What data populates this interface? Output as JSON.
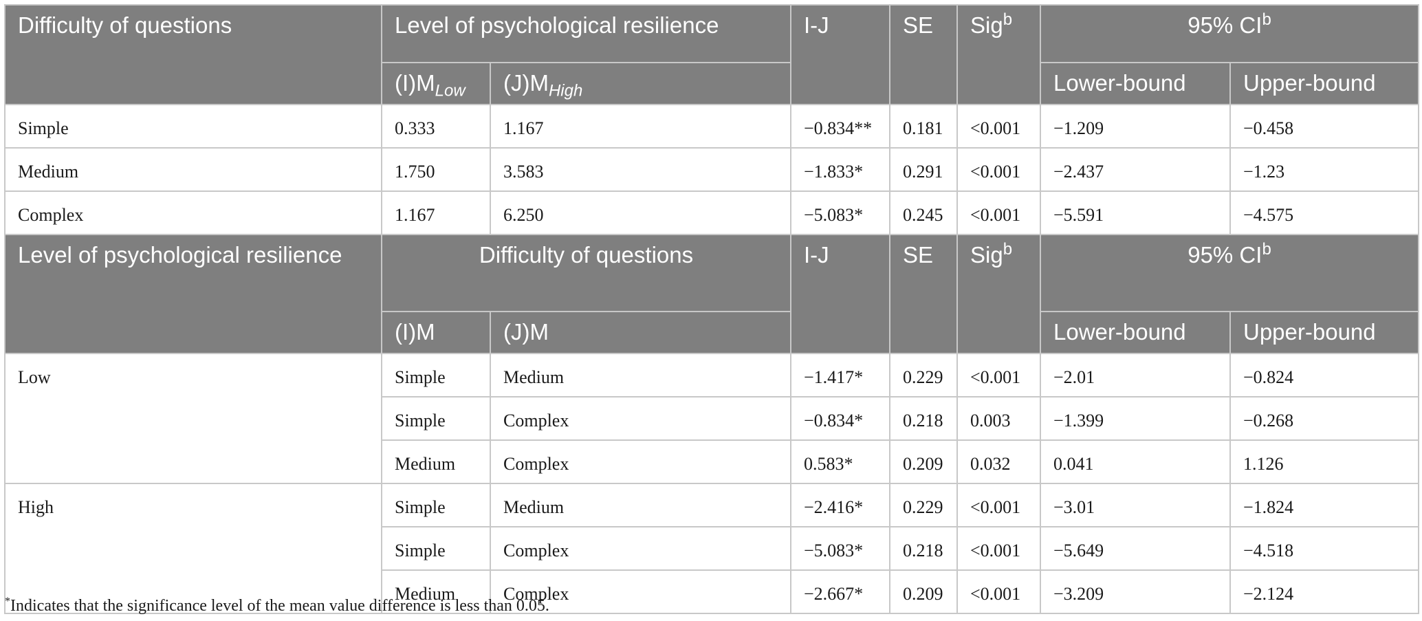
{
  "table1": {
    "header": {
      "difficulty": "Difficulty of questions",
      "level": "Level of psychological resilience",
      "ij": "I-J",
      "se": "SE",
      "sig": "Sig",
      "sig_sup": "b",
      "ci": "95% CI",
      "ci_sup": "b",
      "im_prefix": "(I)M",
      "im_sub": "Low",
      "jm_prefix": "(J)M",
      "jm_sub": "High",
      "lower": "Lower-bound",
      "upper": "Upper-bound"
    },
    "rows": [
      {
        "label": "Simple",
        "i": "0.333",
        "j": "1.167",
        "ij": "−0.834**",
        "se": "0.181",
        "sig": "<0.001",
        "lower": "−1.209",
        "upper": "−0.458"
      },
      {
        "label": "Medium",
        "i": "1.750",
        "j": "3.583",
        "ij": "−1.833*",
        "se": "0.291",
        "sig": "<0.001",
        "lower": "−2.437",
        "upper": "−1.23"
      },
      {
        "label": "Complex",
        "i": "1.167",
        "j": "6.250",
        "ij": "−5.083*",
        "se": "0.245",
        "sig": "<0.001",
        "lower": "−5.591",
        "upper": "−4.575"
      }
    ]
  },
  "table2": {
    "header": {
      "level": "Level of psychological resilience",
      "difficulty": "Difficulty of questions",
      "ij": "I-J",
      "se": "SE",
      "sig": "Sig",
      "sig_sup": "b",
      "ci": "95% CI",
      "ci_sup": "b",
      "im": "(I)M",
      "jm": "(J)M",
      "lower": "Lower-bound",
      "upper": "Upper-bound"
    },
    "groups": [
      {
        "label": "Low",
        "rows": [
          {
            "i": "Simple",
            "j": "Medium",
            "ij": "−1.417*",
            "se": "0.229",
            "sig": "<0.001",
            "lower": "−2.01",
            "upper": "−0.824"
          },
          {
            "i": "Simple",
            "j": "Complex",
            "ij": "−0.834*",
            "se": "0.218",
            "sig": "0.003",
            "lower": "−1.399",
            "upper": "−0.268"
          },
          {
            "i": "Medium",
            "j": "Complex",
            "ij": "0.583*",
            "se": "0.209",
            "sig": "0.032",
            "lower": "0.041",
            "upper": "1.126"
          }
        ]
      },
      {
        "label": "High",
        "rows": [
          {
            "i": "Simple",
            "j": "Medium",
            "ij": "−2.416*",
            "se": "0.229",
            "sig": "<0.001",
            "lower": "−3.01",
            "upper": "−1.824"
          },
          {
            "i": "Simple",
            "j": "Complex",
            "ij": "−5.083*",
            "se": "0.218",
            "sig": "<0.001",
            "lower": "−5.649",
            "upper": "−4.518"
          },
          {
            "i": "Medium",
            "j": "Complex",
            "ij": "−2.667*",
            "se": "0.209",
            "sig": "<0.001",
            "lower": "−3.209",
            "upper": "−2.124"
          }
        ]
      }
    ]
  },
  "footnote": {
    "marker": "*",
    "text": "Indicates that the significance level of the mean value difference is less than 0.05."
  },
  "colors": {
    "header_bg": "#7f7f7f",
    "header_text": "#ffffff",
    "grid": "#c8c8c8"
  }
}
